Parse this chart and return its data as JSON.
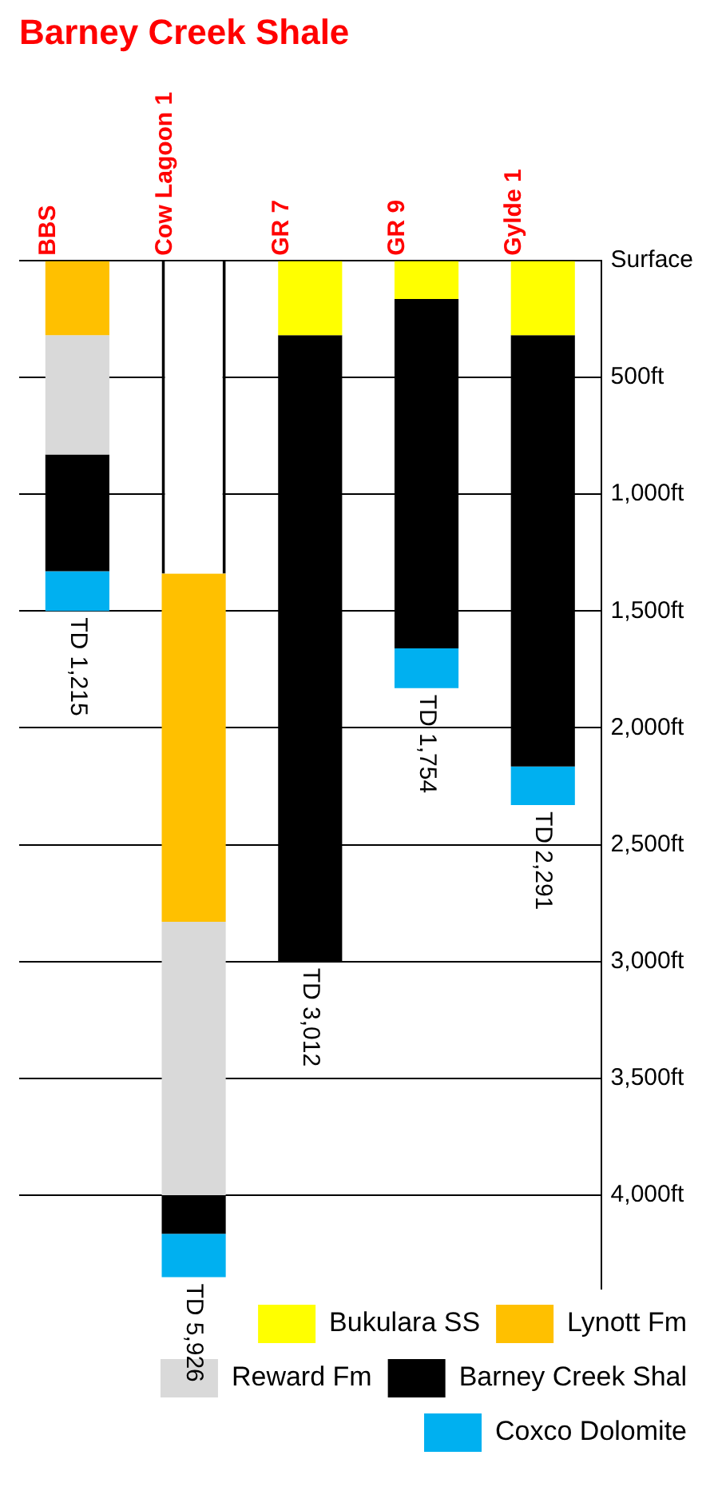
{
  "chart_data": {
    "type": "bar",
    "title": "Barney Creek Shale",
    "categories": [
      "BBS",
      "Cow Lagoon 1",
      "GR 7",
      "GR 9",
      "Gylde 1"
    ],
    "stacked": true,
    "series": [
      {
        "color": "#ffffff",
        "values": [
          null,
          1340,
          null,
          null,
          null
        ]
      },
      {
        "name": "Bukulara SS",
        "color": "#ffff00",
        "values": [
          null,
          null,
          320,
          165,
          320
        ]
      },
      {
        "name": "Lynott Fm",
        "color": "#ffc000",
        "values": [
          320,
          1490,
          null,
          null,
          null
        ]
      },
      {
        "name": "Reward Fm",
        "color": "#d9d9d9",
        "values": [
          510,
          1170,
          null,
          null,
          null
        ]
      },
      {
        "name": "Barney Creek Shal",
        "color": "#000000",
        "values": [
          500,
          165,
          2680,
          1495,
          1845
        ]
      },
      {
        "name": "Coxco Dolomite",
        "color": "#00b0f0",
        "values": [
          170,
          185,
          null,
          170,
          165
        ]
      }
    ],
    "ylim": [
      4400,
      0
    ],
    "yticks": [
      {
        "value": 0,
        "label": "Surface"
      },
      {
        "value": 500,
        "label": "500ft"
      },
      {
        "value": 1000,
        "label": "1,000ft"
      },
      {
        "value": 1500,
        "label": "1,500ft"
      },
      {
        "value": 2000,
        "label": "2,000ft"
      },
      {
        "value": 2500,
        "label": "2,500ft"
      },
      {
        "value": 3000,
        "label": "3,000ft"
      },
      {
        "value": 3500,
        "label": "3,500ft"
      },
      {
        "value": 4000,
        "label": "4,000ft"
      }
    ],
    "grid": "y",
    "legend": "bottom right",
    "annotations": [
      {
        "text": "TD 1,215",
        "x": "BBS",
        "y": 1500
      },
      {
        "text": "TD 5,926",
        "x": "Cow Lagoon 1",
        "y": 4350
      },
      {
        "text": "TD 3,012",
        "x": "GR 7",
        "y": 3000
      },
      {
        "text": "TD 1,754",
        "x": "GR 9",
        "y": 1830
      },
      {
        "text": "TD 2,291",
        "x": "Gylde 1",
        "y": 2330
      }
    ]
  }
}
